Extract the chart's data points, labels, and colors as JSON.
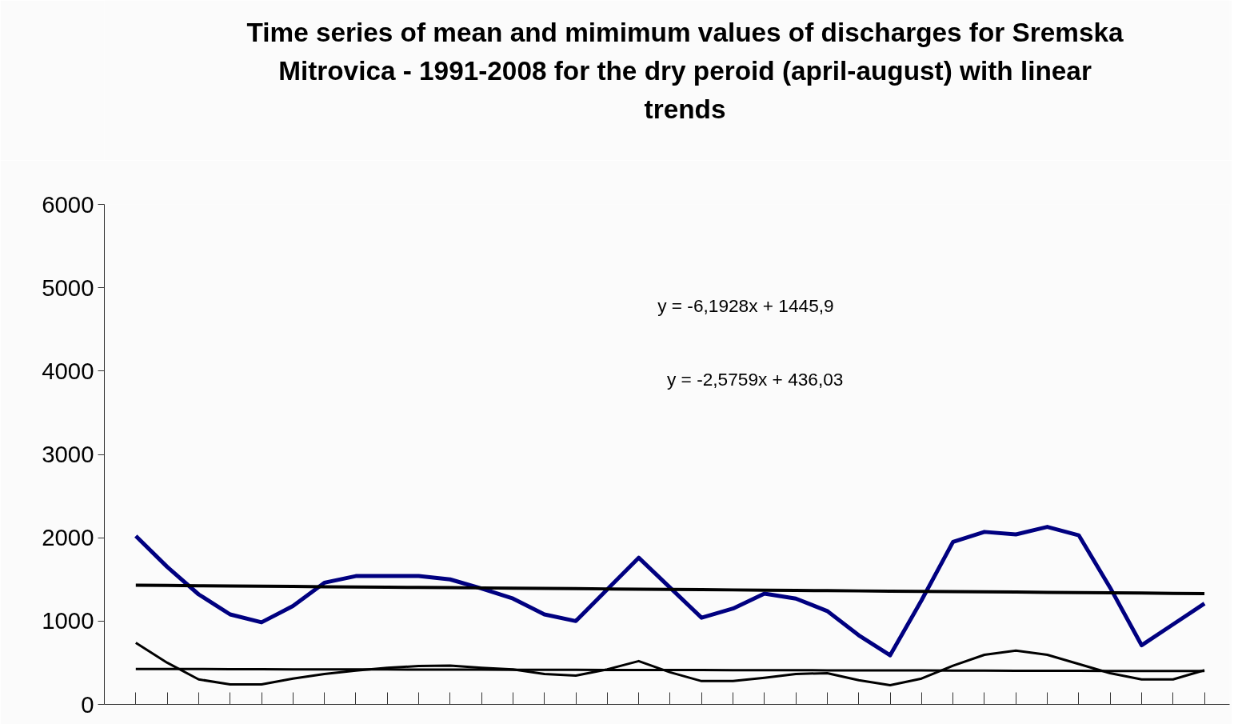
{
  "chart_data": {
    "type": "line",
    "title": "Time series of mean and mimimum values of discharges for Sremska Mitrovica - 1991-2008 for the dry peroid (april-august) with linear trends",
    "categories": [
      null,
      null,
      null,
      null,
      null,
      null,
      null,
      null,
      null,
      null,
      null,
      null,
      null,
      null,
      null,
      null,
      null,
      null,
      null,
      null,
      null,
      null,
      null,
      null,
      null,
      null,
      null,
      null,
      null,
      null,
      null,
      null,
      null,
      null,
      null
    ],
    "series": [
      {
        "color": "#000080",
        "values": [
          2020,
          1650,
          1320,
          1080,
          985,
          1180,
          1460,
          1540,
          1540,
          1540,
          1500,
          1390,
          1270,
          1080,
          1000,
          1380,
          1760,
          1400,
          1040,
          1150,
          1330,
          1270,
          1120,
          830,
          590,
          1250,
          1950,
          2070,
          2040,
          2130,
          2030,
          1400,
          710,
          960,
          1210
        ]
      },
      {
        "color": "#000000",
        "values": [
          740,
          500,
          300,
          240,
          240,
          310,
          365,
          405,
          440,
          460,
          465,
          440,
          420,
          365,
          345,
          420,
          520,
          385,
          280,
          280,
          320,
          365,
          375,
          290,
          230,
          310,
          465,
          595,
          645,
          595,
          485,
          375,
          300,
          300,
          410
        ]
      },
      {
        "color": "#000000",
        "values": [
          1430,
          1427,
          1424,
          1421,
          1418,
          1415,
          1412,
          1409,
          1406,
          1404,
          1401,
          1398,
          1395,
          1392,
          1389,
          1386,
          1383,
          1380,
          1377,
          1374,
          1371,
          1368,
          1365,
          1362,
          1359,
          1356,
          1354,
          1351,
          1348,
          1345,
          1342,
          1339,
          1336,
          1333,
          1330
        ]
      },
      {
        "color": "#000000",
        "values": [
          425,
          424,
          424,
          423,
          422,
          421,
          421,
          420,
          419,
          418,
          418,
          417,
          416,
          415,
          415,
          414,
          413,
          413,
          412,
          411,
          410,
          410,
          409,
          408,
          407,
          407,
          406,
          405,
          404,
          404,
          403,
          402,
          401,
          401,
          400
        ]
      }
    ],
    "ylim": [
      0,
      6000
    ],
    "yticks": [
      0,
      1000,
      2000,
      3000,
      4000,
      5000,
      6000
    ],
    "tick_labels": "y",
    "grid": false,
    "marker": "none",
    "line_style": "solid",
    "annotations": [
      "y = -6,1928x + 1445,9",
      "y = -2,5759x + 436,03"
    ]
  }
}
